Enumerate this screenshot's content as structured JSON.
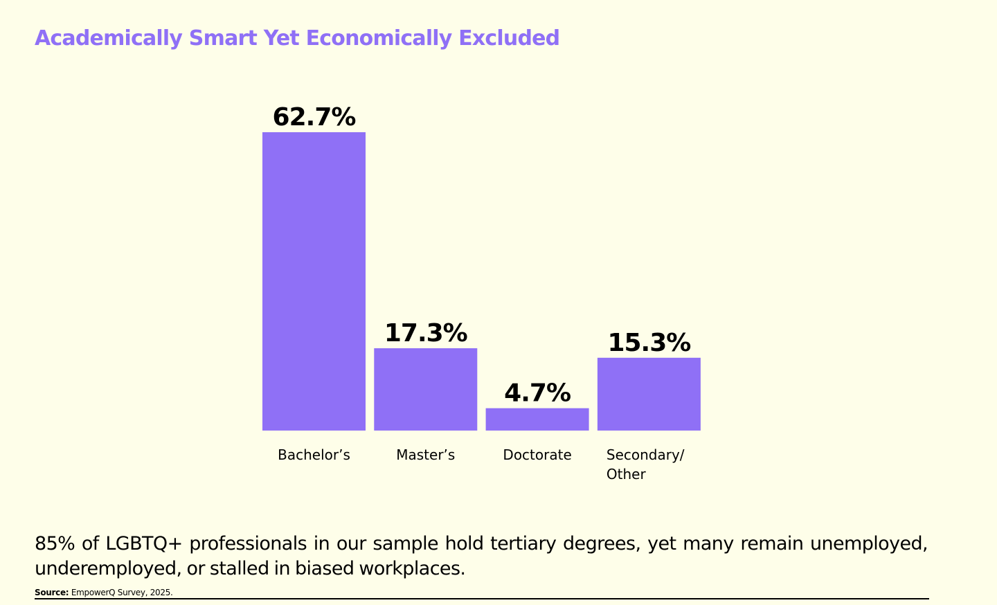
{
  "page": {
    "title": "Academically Smart Yet Economically Excluded",
    "summary": "85% of LGBTQ+ professionals in our sample hold tertiary degrees, yet many remain unemployed, underemployed, or stalled in biased workplaces.",
    "source_label": "Source:",
    "source_text": "EmpowerQ Survey, 2025."
  },
  "colors": {
    "accent": "#8f70f6",
    "background": "#fefee9",
    "text": "#000000"
  },
  "chart_data": {
    "type": "bar",
    "title": "",
    "xlabel": "",
    "ylabel": "",
    "categories": [
      "Bachelor’s",
      "Master’s",
      "Doctorate",
      "Secondary/ Other"
    ],
    "category_lines": [
      [
        "Bachelor’s"
      ],
      [
        "Master’s"
      ],
      [
        "Doctorate"
      ],
      [
        "Secondary/",
        "Other"
      ]
    ],
    "values": [
      62.7,
      17.3,
      4.7,
      15.3
    ],
    "value_labels": [
      "62.7%",
      "17.3%",
      "4.7%",
      "15.3%"
    ],
    "ylim": [
      0,
      62.7
    ],
    "grid": false,
    "legend": "none"
  }
}
